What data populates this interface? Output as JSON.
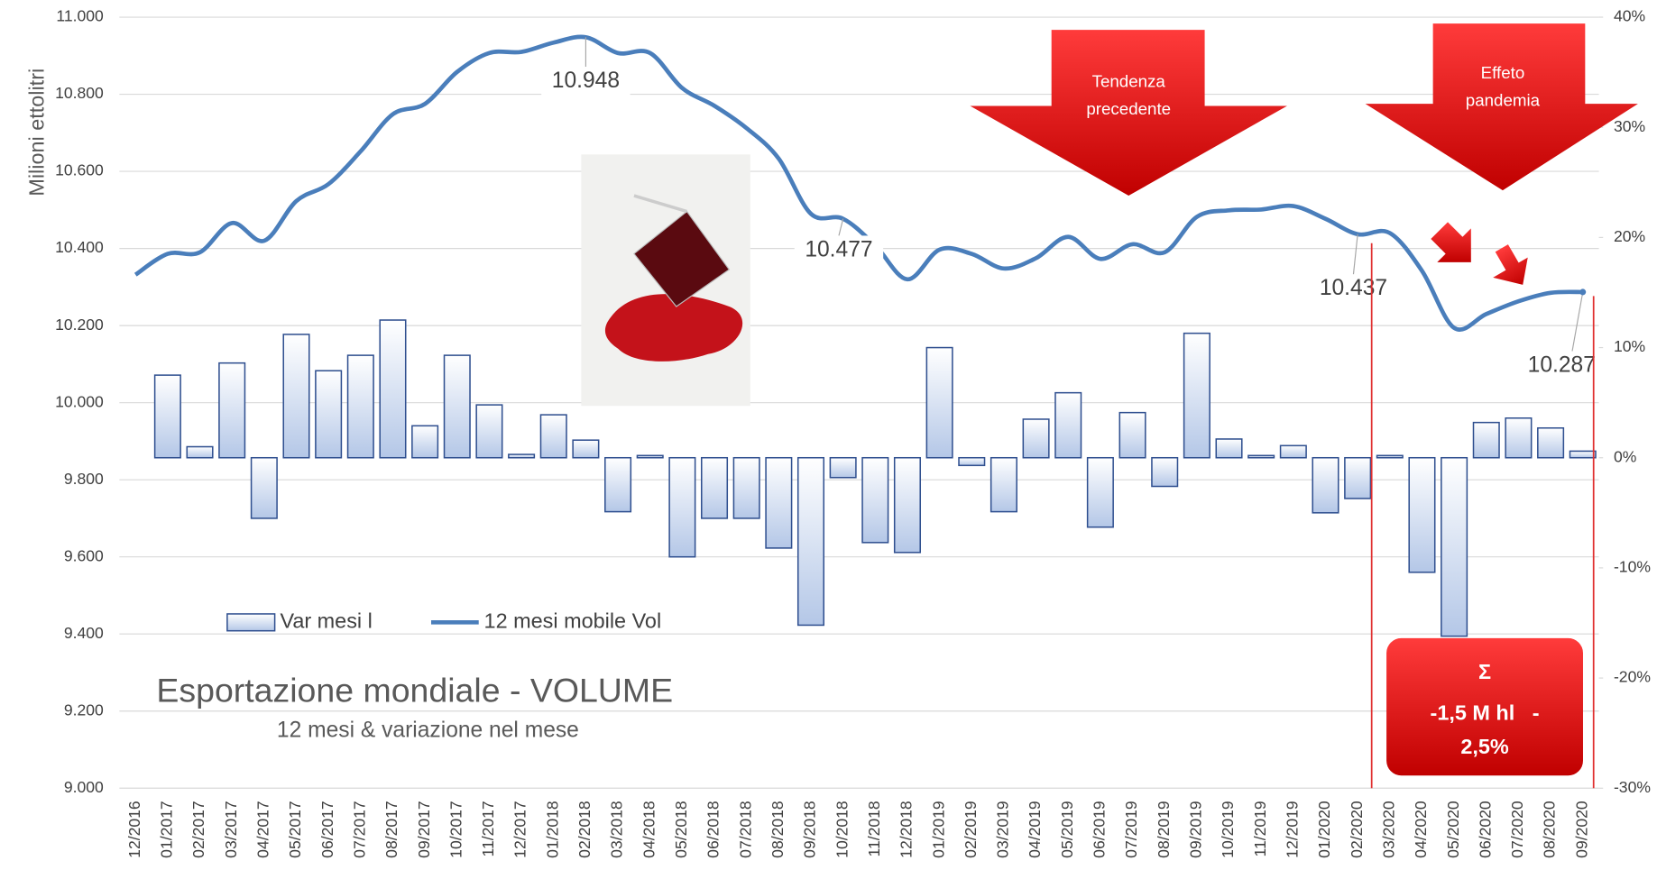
{
  "chart_data": {
    "type": "bar-line",
    "title": "Esportazione mondiale - VOLUME",
    "subtitle": "12 mesi & variazione nel mese",
    "y_label": "Milioni ettolitri",
    "categories": [
      "12/2016",
      "01/2017",
      "02/2017",
      "03/2017",
      "04/2017",
      "05/2017",
      "06/2017",
      "07/2017",
      "08/2017",
      "09/2017",
      "10/2017",
      "11/2017",
      "12/2017",
      "01/2018",
      "02/2018",
      "03/2018",
      "04/2018",
      "05/2018",
      "06/2018",
      "07/2018",
      "08/2018",
      "09/2018",
      "10/2018",
      "11/2018",
      "12/2018",
      "01/2019",
      "02/2019",
      "03/2019",
      "04/2019",
      "05/2019",
      "06/2019",
      "07/2019",
      "08/2019",
      "09/2019",
      "10/2019",
      "11/2019",
      "12/2019",
      "01/2020",
      "02/2020",
      "03/2020",
      "04/2020",
      "05/2020",
      "06/2020",
      "07/2020",
      "08/2020",
      "09/2020"
    ],
    "series": [
      {
        "name": "Var mesi l",
        "type": "bar",
        "axis": "y2",
        "color": "#2f4f8f",
        "values": [
          null,
          7.5,
          1.0,
          8.6,
          -5.5,
          11.2,
          7.9,
          9.3,
          12.5,
          2.9,
          9.3,
          4.8,
          0.3,
          3.9,
          1.6,
          -4.9,
          0.2,
          -9.0,
          -5.5,
          -5.5,
          -8.2,
          -15.2,
          -1.8,
          -7.7,
          -8.6,
          10.0,
          -0.7,
          -4.9,
          3.5,
          5.9,
          -6.3,
          4.1,
          -2.6,
          11.3,
          1.7,
          0.2,
          1.1,
          -5.0,
          -3.7,
          0.2,
          -10.4,
          -16.2,
          3.2,
          3.6,
          2.7,
          0.6
        ]
      },
      {
        "name": "12 mesi mobile Vol",
        "type": "line",
        "color": "#4a7ebb",
        "values": [
          10.332,
          10.386,
          10.39,
          10.466,
          10.42,
          10.523,
          10.567,
          10.652,
          10.748,
          10.775,
          10.858,
          10.907,
          10.91,
          10.934,
          10.948,
          10.907,
          10.907,
          10.816,
          10.77,
          10.712,
          10.633,
          10.49,
          10.477,
          10.408,
          10.32,
          10.397,
          10.386,
          10.348,
          10.375,
          10.43,
          10.373,
          10.411,
          10.39,
          10.482,
          10.499,
          10.501,
          10.51,
          10.477,
          10.437,
          10.44,
          10.342,
          10.194,
          10.23,
          10.263,
          10.285,
          10.287
        ],
        "value_labels": [
          null,
          null,
          null,
          null,
          null,
          null,
          null,
          null,
          null,
          null,
          null,
          null,
          null,
          null,
          "10.948",
          null,
          null,
          null,
          null,
          null,
          null,
          null,
          "10.477",
          null,
          null,
          null,
          null,
          null,
          null,
          null,
          null,
          null,
          null,
          null,
          null,
          null,
          null,
          null,
          "10.437",
          null,
          null,
          null,
          null,
          null,
          null,
          "10.287"
        ]
      }
    ],
    "ylim": [
      9,
      11
    ],
    "yticks": [
      {
        "value": 9,
        "label": "9.000"
      },
      {
        "value": 9.2,
        "label": "9.200"
      },
      {
        "value": 9.4,
        "label": "9.400"
      },
      {
        "value": 9.6,
        "label": "9.600"
      },
      {
        "value": 9.8,
        "label": "9.800"
      },
      {
        "value": 10,
        "label": "10.000"
      },
      {
        "value": 10.2,
        "label": "10.200"
      },
      {
        "value": 10.4,
        "label": "10.400"
      },
      {
        "value": 10.6,
        "label": "10.600"
      },
      {
        "value": 10.8,
        "label": "10.800"
      },
      {
        "value": 11,
        "label": "11.000"
      }
    ],
    "y2lim": [
      -30,
      40
    ],
    "y2ticks": [
      {
        "value": -30,
        "label": "-30%"
      },
      {
        "value": -20,
        "label": "-20%"
      },
      {
        "value": -10,
        "label": "-10%"
      },
      {
        "value": 0,
        "label": "0%"
      },
      {
        "value": 10,
        "label": "10%"
      },
      {
        "value": 20,
        "label": "20%"
      },
      {
        "value": 30,
        "label": "30%"
      },
      {
        "value": 40,
        "label": "40%"
      }
    ],
    "grid": true,
    "annotations": [
      [
        "Tendenza",
        "precedente"
      ],
      [
        "Effeto",
        "pandemia"
      ],
      [
        "Σ",
        "-1,5 M hl   -",
        "2,5%"
      ]
    ]
  }
}
